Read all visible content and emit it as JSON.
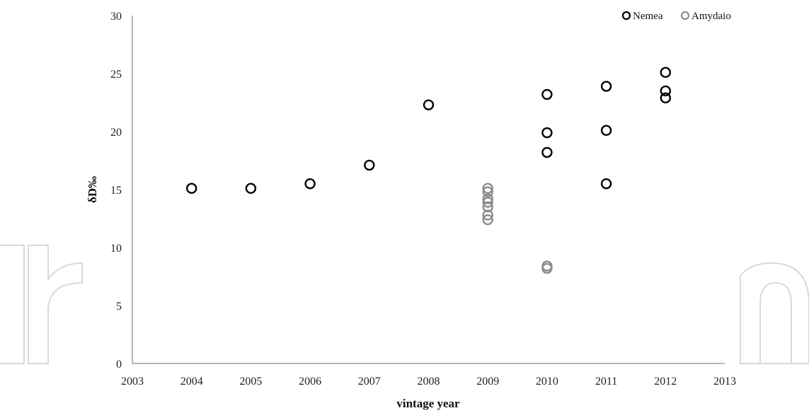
{
  "chart_data": {
    "type": "scatter",
    "title": "",
    "xlabel": "vintage year",
    "ylabel": "δD‰",
    "xlim": [
      2003,
      2013
    ],
    "ylim": [
      0,
      30
    ],
    "xticks": [
      2003,
      2004,
      2005,
      2006,
      2007,
      2008,
      2009,
      2010,
      2011,
      2012,
      2013
    ],
    "yticks": [
      0,
      5,
      10,
      15,
      20,
      25,
      30
    ],
    "grid": false,
    "legend_position": "top-right",
    "series": [
      {
        "name": "Nemea",
        "color": "#000000",
        "marker": "open-circle",
        "points": [
          {
            "x": 2004,
            "y": 15.1
          },
          {
            "x": 2005,
            "y": 15.1
          },
          {
            "x": 2006,
            "y": 15.5
          },
          {
            "x": 2007,
            "y": 17.1
          },
          {
            "x": 2008,
            "y": 22.3
          },
          {
            "x": 2010,
            "y": 23.2
          },
          {
            "x": 2010,
            "y": 19.9
          },
          {
            "x": 2010,
            "y": 18.2
          },
          {
            "x": 2011,
            "y": 23.9
          },
          {
            "x": 2011,
            "y": 20.1
          },
          {
            "x": 2011,
            "y": 15.5
          },
          {
            "x": 2012,
            "y": 25.1
          },
          {
            "x": 2012,
            "y": 23.5
          },
          {
            "x": 2012,
            "y": 22.9
          }
        ]
      },
      {
        "name": "Amydaio",
        "color": "#8c8c8c",
        "marker": "open-circle",
        "points": [
          {
            "x": 2009,
            "y": 15.1
          },
          {
            "x": 2009,
            "y": 14.8
          },
          {
            "x": 2009,
            "y": 14.2
          },
          {
            "x": 2009,
            "y": 13.9
          },
          {
            "x": 2009,
            "y": 13.5
          },
          {
            "x": 2009,
            "y": 12.8
          },
          {
            "x": 2009,
            "y": 12.4
          },
          {
            "x": 2010,
            "y": 8.4
          },
          {
            "x": 2010,
            "y": 8.2
          }
        ]
      }
    ]
  }
}
